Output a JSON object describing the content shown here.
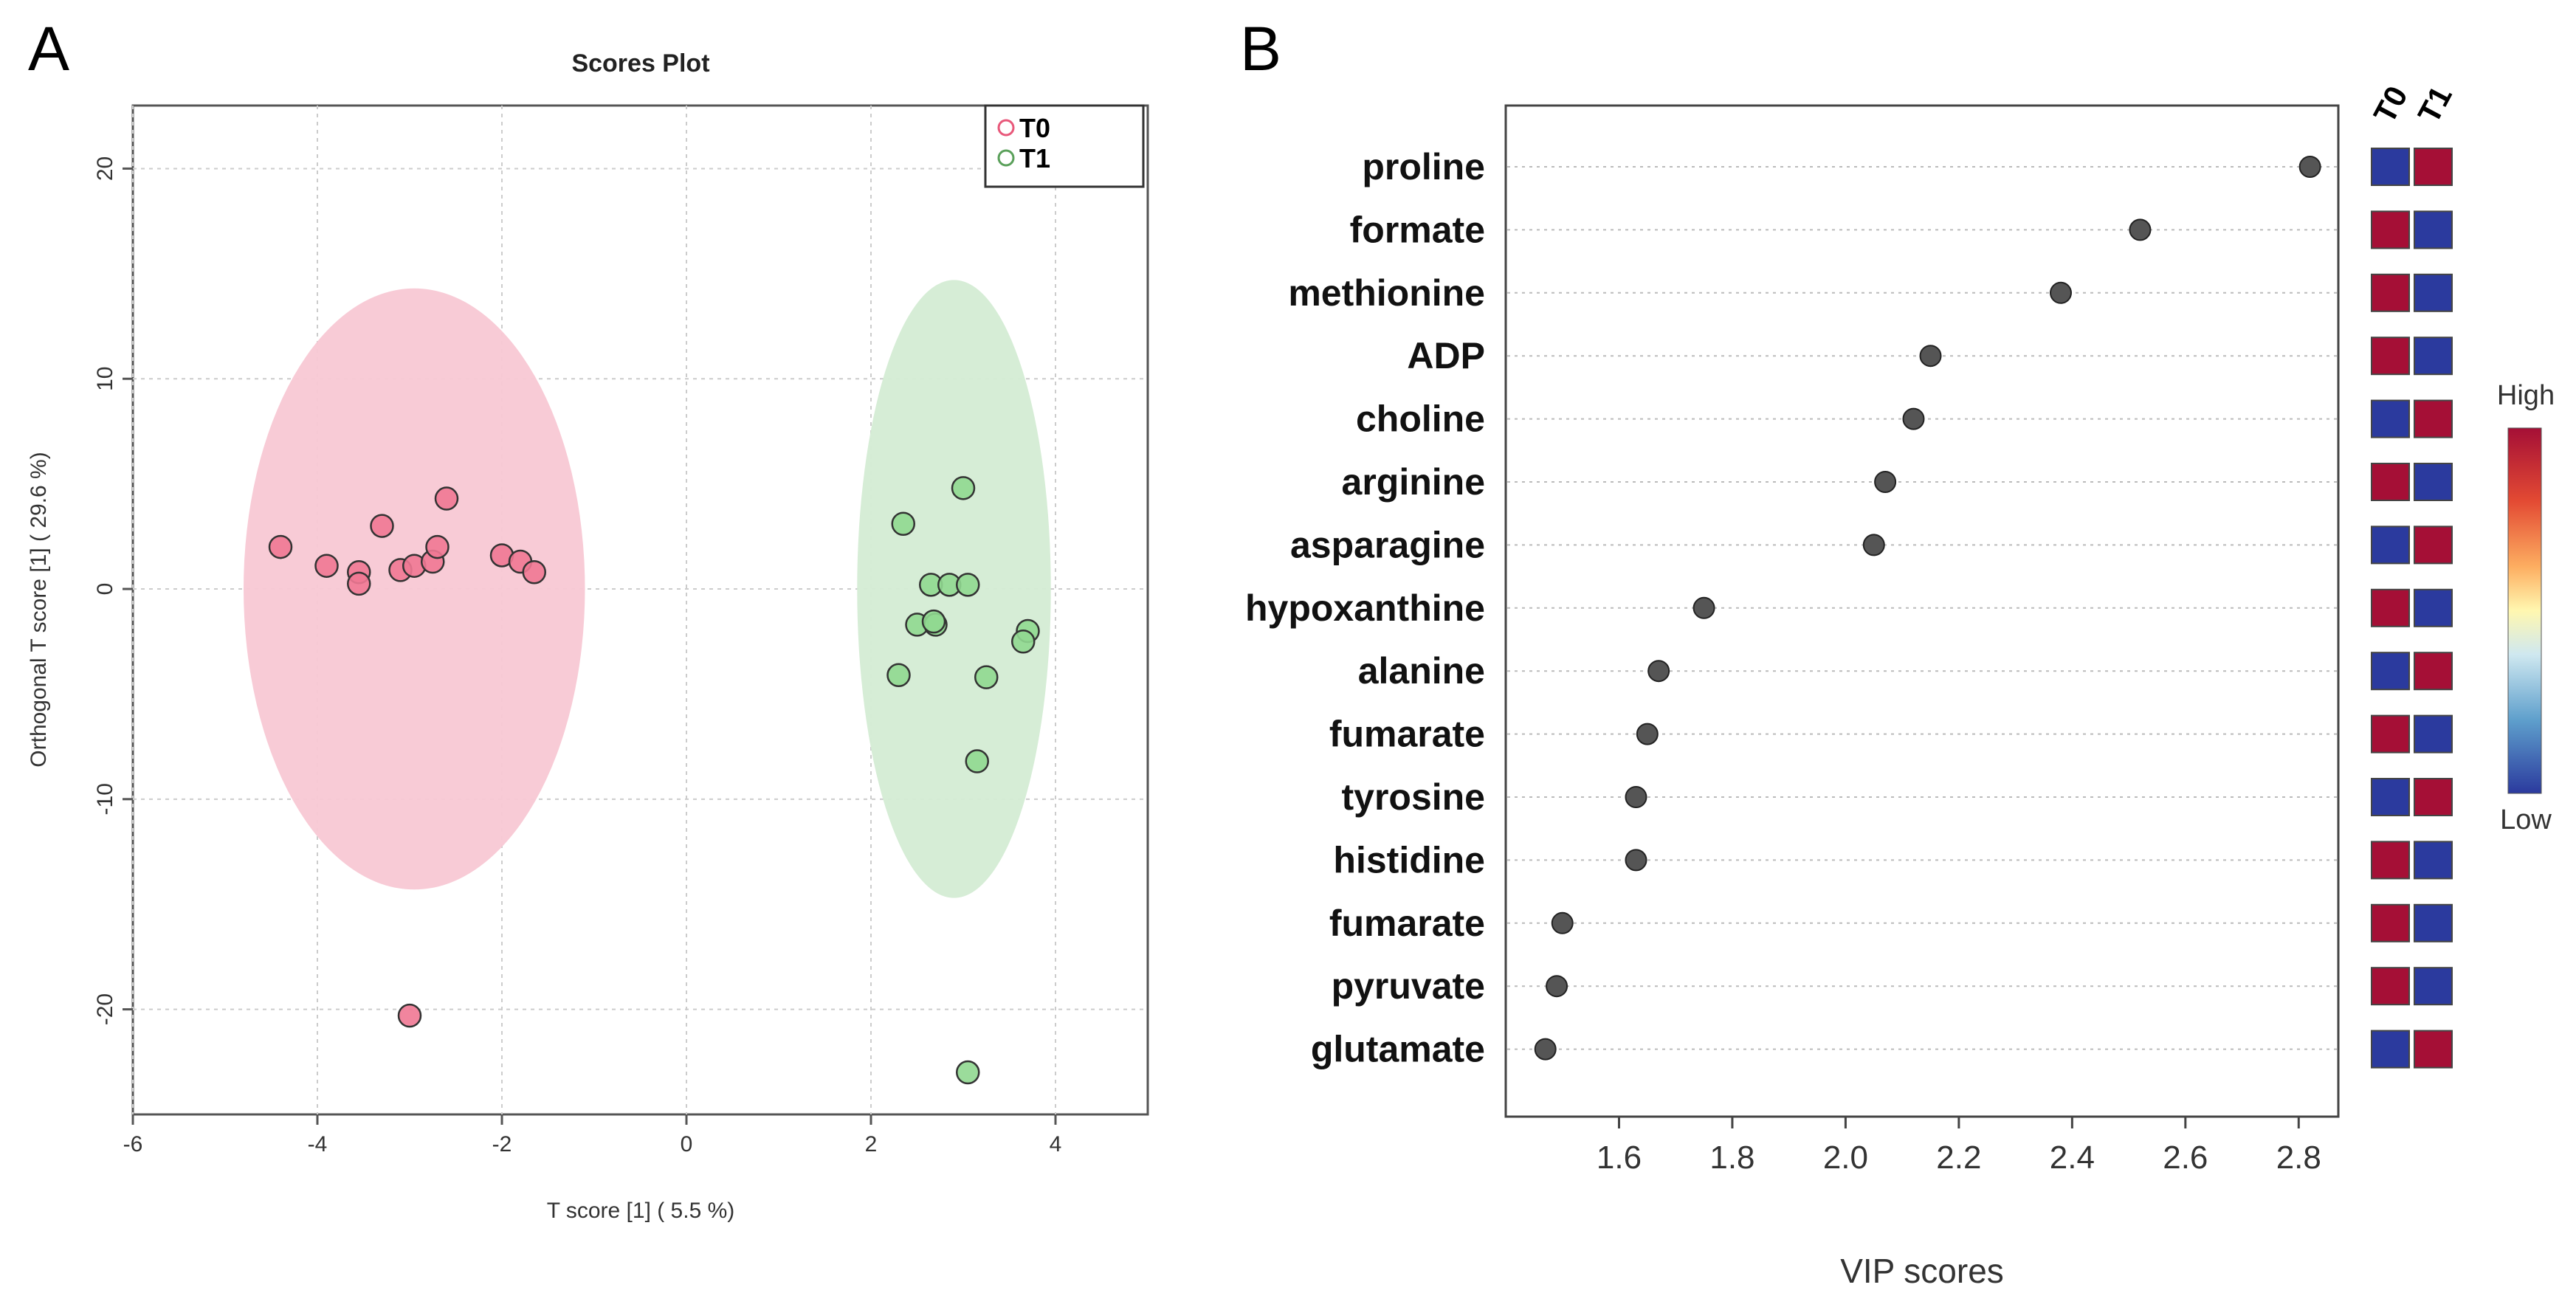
{
  "chart_data": [
    {
      "panel": "A",
      "type": "scatter",
      "title": "Scores Plot",
      "xlabel": "T score [1] ( 5.5 %)",
      "ylabel": "Orthogonal T score [1] ( 29.6 %)",
      "xlim": [
        -6,
        5
      ],
      "ylim": [
        -25,
        23
      ],
      "xticks": [
        -6,
        -4,
        -2,
        0,
        2,
        4
      ],
      "yticks": [
        -20,
        -10,
        0,
        10,
        20
      ],
      "grid": true,
      "legend_position": "top-right",
      "series": [
        {
          "name": "T0",
          "color": "#e8587a",
          "fill": "#f07894",
          "ellipse": {
            "cx": -2.95,
            "cy": 0,
            "rx": 1.85,
            "ry": 14.3,
            "color": "#f8c8d4"
          },
          "points": [
            [
              -4.4,
              2.0
            ],
            [
              -3.9,
              1.1
            ],
            [
              -3.55,
              0.8
            ],
            [
              -3.55,
              0.25
            ],
            [
              -3.3,
              3.0
            ],
            [
              -3.1,
              0.9
            ],
            [
              -2.95,
              1.1
            ],
            [
              -2.75,
              1.3
            ],
            [
              -2.7,
              2.0
            ],
            [
              -2.6,
              4.3
            ],
            [
              -2.0,
              1.6
            ],
            [
              -1.8,
              1.3
            ],
            [
              -1.65,
              0.8
            ],
            [
              -3.0,
              -20.3
            ]
          ]
        },
        {
          "name": "T1",
          "color": "#5aa05a",
          "fill": "#90d890",
          "ellipse": {
            "cx": 2.9,
            "cy": 0,
            "rx": 1.05,
            "ry": 14.7,
            "color": "#d4ecd4"
          },
          "points": [
            [
              2.35,
              3.1
            ],
            [
              3.0,
              4.8
            ],
            [
              2.65,
              0.2
            ],
            [
              2.85,
              0.2
            ],
            [
              3.05,
              0.2
            ],
            [
              2.5,
              -1.7
            ],
            [
              2.7,
              -1.7
            ],
            [
              2.68,
              -1.55
            ],
            [
              3.7,
              -2.0
            ],
            [
              3.65,
              -2.5
            ],
            [
              2.3,
              -4.1
            ],
            [
              3.25,
              -4.2
            ],
            [
              3.15,
              -8.2
            ],
            [
              3.05,
              -23.0
            ]
          ]
        }
      ]
    },
    {
      "panel": "B",
      "type": "scatter",
      "subtype": "dot-plot",
      "xlabel": "VIP scores",
      "xlim": [
        1.4,
        2.87
      ],
      "xticks": [
        "1.6",
        "1.8",
        "2.0",
        "2.2",
        "2.4",
        "2.6",
        "2.8"
      ],
      "categories": [
        "proline",
        "formate",
        "methionine",
        "ADP",
        "choline",
        "arginine",
        "asparagine",
        "hypoxanthine",
        "alanine",
        "fumarate",
        "tyrosine",
        "histidine",
        "fumarate",
        "pyruvate",
        "glutamate"
      ],
      "values": [
        2.82,
        2.52,
        2.38,
        2.15,
        2.12,
        2.07,
        2.05,
        1.75,
        1.67,
        1.65,
        1.63,
        1.63,
        1.5,
        1.49,
        1.47
      ],
      "heatmap_columns": [
        "T0",
        "T1"
      ],
      "heatmap_levels": [
        [
          "low",
          "high"
        ],
        [
          "high",
          "low"
        ],
        [
          "high",
          "low"
        ],
        [
          "high",
          "low"
        ],
        [
          "low",
          "high"
        ],
        [
          "high",
          "low"
        ],
        [
          "low",
          "high"
        ],
        [
          "high",
          "low"
        ],
        [
          "low",
          "high"
        ],
        [
          "high",
          "low"
        ],
        [
          "low",
          "high"
        ],
        [
          "high",
          "low"
        ],
        [
          "high",
          "low"
        ],
        [
          "high",
          "low"
        ],
        [
          "low",
          "high"
        ]
      ],
      "colorbar": {
        "high_label": "High",
        "low_label": "Low",
        "high_color": "#a50f36",
        "low_color": "#2b3a9e"
      }
    }
  ],
  "panels": {
    "a_letter": "A",
    "b_letter": "B"
  },
  "colors": {
    "dot": "#555555",
    "grid": "#cccccc",
    "frame": "#555555"
  }
}
